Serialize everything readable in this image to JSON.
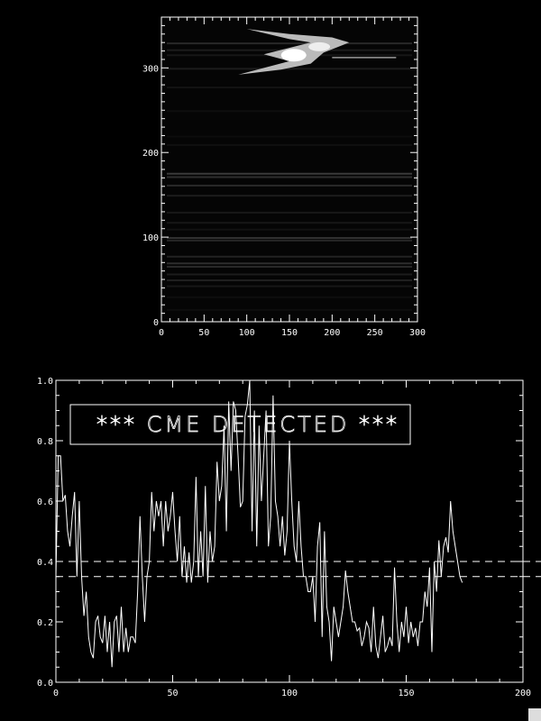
{
  "chart_data": [
    {
      "type": "heatmap",
      "title": "",
      "xlabel": "",
      "ylabel": "",
      "xlim": [
        0,
        300
      ],
      "ylim": [
        0,
        360
      ],
      "xticks": [
        "0",
        "50",
        "100",
        "150",
        "200",
        "250",
        "300"
      ],
      "yticks": [
        "0",
        "100",
        "200",
        "300"
      ],
      "colormap": "grayscale",
      "grid": false
    },
    {
      "type": "line",
      "title": "",
      "xlabel": "",
      "ylabel": "",
      "xlim": [
        0,
        200
      ],
      "ylim": [
        0,
        1.0
      ],
      "xticks": [
        "0",
        "50",
        "100",
        "150",
        "200"
      ],
      "yticks": [
        "0.0",
        "0.2",
        "0.4",
        "0.6",
        "0.8",
        "1.0"
      ],
      "grid": false,
      "annotation": "*** CME DETECTED ***",
      "thresholds": [
        0.4,
        0.35
      ],
      "series": [
        {
          "x_start": 0,
          "color": "#ffffff",
          "values": [
            0.35,
            0.75,
            0.75,
            0.6,
            0.62,
            0.5,
            0.45,
            0.55,
            0.63,
            0.35,
            0.6,
            0.35,
            0.22,
            0.3,
            0.15,
            0.1,
            0.08,
            0.2,
            0.22,
            0.15,
            0.13,
            0.22,
            0.1,
            0.2,
            0.05,
            0.2,
            0.22,
            0.1,
            0.25,
            0.1,
            0.18,
            0.1,
            0.15,
            0.15,
            0.13,
            0.3,
            0.55,
            0.35,
            0.2,
            0.35,
            0.4,
            0.63,
            0.5,
            0.6,
            0.55,
            0.6,
            0.45,
            0.6,
            0.5,
            0.55,
            0.63,
            0.5,
            0.4,
            0.55,
            0.35,
            0.45,
            0.33,
            0.43,
            0.33,
            0.4,
            0.68,
            0.35,
            0.5,
            0.35,
            0.65,
            0.33,
            0.5,
            0.4,
            0.45,
            0.73,
            0.6,
            0.65,
            0.85,
            0.5,
            0.93,
            0.7,
            0.93,
            0.9,
            0.75,
            0.58,
            0.6,
            0.88,
            0.92,
            1.0,
            0.5,
            0.9,
            0.45,
            0.85,
            0.6,
            0.75,
            0.9,
            0.45,
            0.55,
            0.95,
            0.6,
            0.55,
            0.45,
            0.55,
            0.42,
            0.5,
            0.8,
            0.6,
            0.45,
            0.4,
            0.6,
            0.45,
            0.35,
            0.35,
            0.3,
            0.3,
            0.35,
            0.2,
            0.45,
            0.53,
            0.15,
            0.5,
            0.25,
            0.2,
            0.07,
            0.25,
            0.2,
            0.15,
            0.2,
            0.25,
            0.37,
            0.3,
            0.25,
            0.2,
            0.2,
            0.17,
            0.18,
            0.12,
            0.15,
            0.2,
            0.18,
            0.1,
            0.25,
            0.12,
            0.08,
            0.15,
            0.22,
            0.1,
            0.12,
            0.15,
            0.12,
            0.38,
            0.2,
            0.1,
            0.2,
            0.15,
            0.25,
            0.13,
            0.2,
            0.15,
            0.18,
            0.12,
            0.2,
            0.2,
            0.3,
            0.25,
            0.38,
            0.1,
            0.4,
            0.3,
            0.47,
            0.35,
            0.45,
            0.48,
            0.43,
            0.6,
            0.5,
            0.45,
            0.4,
            0.35,
            0.33
          ]
        }
      ]
    }
  ]
}
